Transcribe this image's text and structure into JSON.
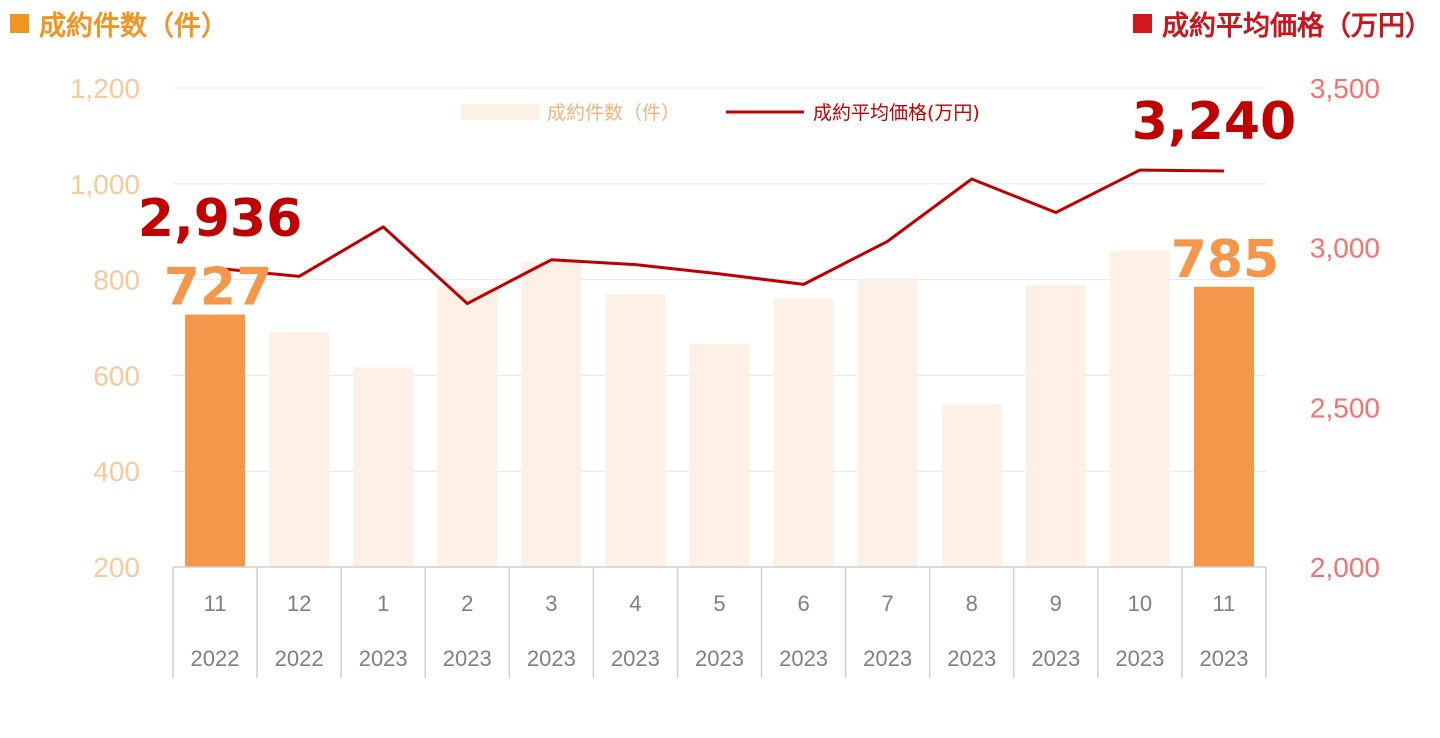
{
  "header_left": {
    "text": "成約件数（件）",
    "color": "#f29422"
  },
  "header_right": {
    "text": "成約平均価格（万円）",
    "color": "#d0191f"
  },
  "chart_data": {
    "type": "bar+line",
    "categories": [
      {
        "month": "11",
        "year": "2022"
      },
      {
        "month": "12",
        "year": "2022"
      },
      {
        "month": "1",
        "year": "2023"
      },
      {
        "month": "2",
        "year": "2023"
      },
      {
        "month": "3",
        "year": "2023"
      },
      {
        "month": "4",
        "year": "2023"
      },
      {
        "month": "5",
        "year": "2023"
      },
      {
        "month": "6",
        "year": "2023"
      },
      {
        "month": "7",
        "year": "2023"
      },
      {
        "month": "8",
        "year": "2023"
      },
      {
        "month": "9",
        "year": "2023"
      },
      {
        "month": "10",
        "year": "2023"
      },
      {
        "month": "11",
        "year": "2023"
      }
    ],
    "series": [
      {
        "name": "成約件数（件）",
        "type": "bar",
        "axis": "left",
        "values": [
          727,
          691,
          617,
          782,
          838,
          770,
          666,
          760,
          800,
          539,
          789,
          860,
          785
        ],
        "highlight_indices": [
          0,
          12
        ],
        "color": "#f5974a",
        "faded_color": "#fdf0e6"
      },
      {
        "name": "成約平均価格(万円)",
        "type": "line",
        "axis": "right",
        "values": [
          2936,
          2910,
          3065,
          2825,
          2962,
          2947,
          2918,
          2885,
          3020,
          3215,
          3110,
          3243,
          3240
        ],
        "color": "#c00000"
      }
    ],
    "y_left": {
      "ticks": [
        "200",
        "400",
        "600",
        "800",
        "1,000",
        "1,200"
      ],
      "range": [
        200,
        1200
      ],
      "color": "#f9c89b"
    },
    "y_right": {
      "ticks": [
        "2,000",
        "2,500",
        "3,000",
        "3,500"
      ],
      "range": [
        2000,
        3500
      ],
      "color": "#f4726f"
    },
    "grid": true,
    "legend_position": "top-center",
    "data_labels": [
      {
        "series": 0,
        "index": 0,
        "text": "727"
      },
      {
        "series": 0,
        "index": 12,
        "text": "785"
      },
      {
        "series": 1,
        "index": 0,
        "text": "2,936"
      },
      {
        "series": 1,
        "index": 12,
        "text": "3,240"
      }
    ]
  }
}
